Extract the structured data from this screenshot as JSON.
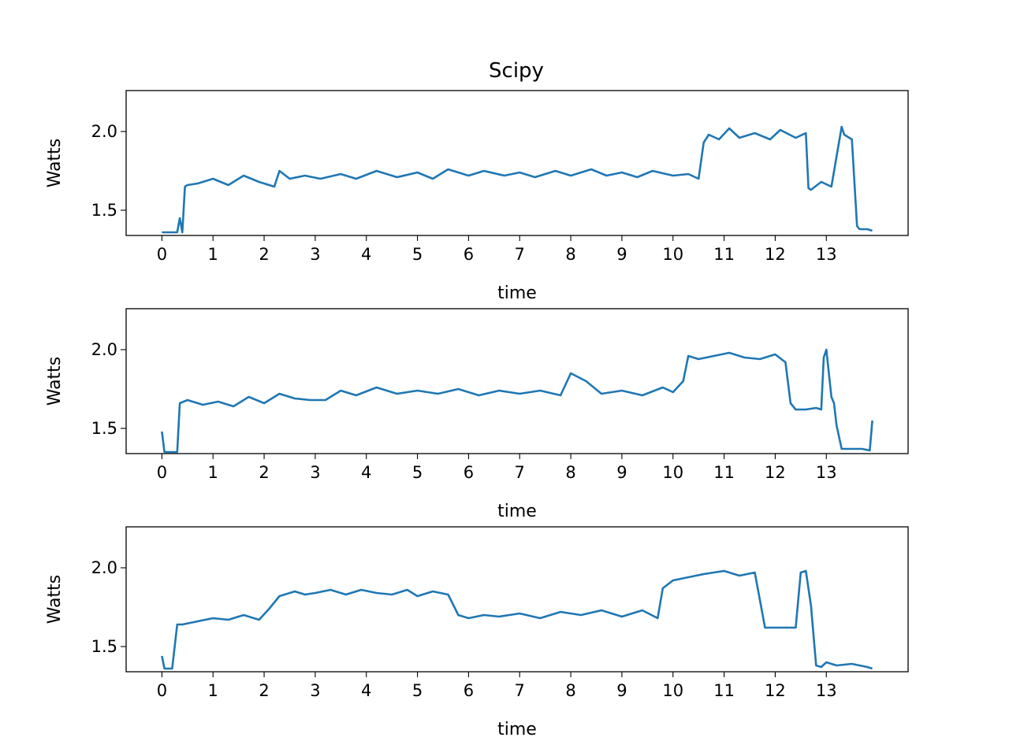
{
  "title": "Scipy",
  "colors": {
    "series": "#1f77b4"
  },
  "chart_data": [
    {
      "type": "line",
      "xlabel": "time",
      "ylabel": "Watts",
      "xlim": [
        -0.7,
        14.6
      ],
      "ylim": [
        1.34,
        2.26
      ],
      "xticks": [
        0,
        1,
        2,
        3,
        4,
        5,
        6,
        7,
        8,
        9,
        10,
        11,
        12,
        13
      ],
      "yticks": [
        1.5,
        2.0
      ],
      "ytick_labels": [
        "1.5",
        "2.0"
      ],
      "grid": false,
      "series": [
        {
          "x": [
            0,
            0.3,
            0.35,
            0.4,
            0.45,
            0.5,
            0.7,
            1.0,
            1.3,
            1.6,
            1.9,
            2.2,
            2.3,
            2.5,
            2.8,
            3.1,
            3.5,
            3.8,
            4.2,
            4.6,
            5.0,
            5.3,
            5.6,
            6.0,
            6.3,
            6.7,
            7.0,
            7.3,
            7.7,
            8.0,
            8.4,
            8.7,
            9.0,
            9.3,
            9.6,
            10.0,
            10.3,
            10.5,
            10.6,
            10.7,
            10.9,
            11.1,
            11.3,
            11.6,
            11.9,
            12.1,
            12.4,
            12.6,
            12.65,
            12.7,
            12.9,
            13.1,
            13.3,
            13.35,
            13.5,
            13.6,
            13.65,
            13.8,
            13.9
          ],
          "y": [
            1.36,
            1.36,
            1.45,
            1.36,
            1.65,
            1.66,
            1.67,
            1.7,
            1.66,
            1.72,
            1.68,
            1.65,
            1.75,
            1.7,
            1.72,
            1.7,
            1.73,
            1.7,
            1.75,
            1.71,
            1.74,
            1.7,
            1.76,
            1.72,
            1.75,
            1.72,
            1.74,
            1.71,
            1.75,
            1.72,
            1.76,
            1.72,
            1.74,
            1.71,
            1.75,
            1.72,
            1.73,
            1.7,
            1.93,
            1.98,
            1.95,
            2.02,
            1.96,
            1.99,
            1.95,
            2.01,
            1.96,
            1.99,
            1.64,
            1.63,
            1.68,
            1.65,
            2.03,
            1.98,
            1.95,
            1.4,
            1.38,
            1.38,
            1.37
          ]
        }
      ]
    },
    {
      "type": "line",
      "xlabel": "time",
      "ylabel": "Watts",
      "xlim": [
        -0.7,
        14.6
      ],
      "ylim": [
        1.34,
        2.26
      ],
      "xticks": [
        0,
        1,
        2,
        3,
        4,
        5,
        6,
        7,
        8,
        9,
        10,
        11,
        12,
        13
      ],
      "yticks": [
        1.5,
        2.0
      ],
      "ytick_labels": [
        "1.5",
        "2.0"
      ],
      "grid": false,
      "series": [
        {
          "x": [
            0,
            0.05,
            0.1,
            0.15,
            0.3,
            0.35,
            0.5,
            0.8,
            1.1,
            1.4,
            1.7,
            2.0,
            2.3,
            2.6,
            2.9,
            3.2,
            3.5,
            3.8,
            4.2,
            4.6,
            5.0,
            5.4,
            5.8,
            6.2,
            6.6,
            7.0,
            7.4,
            7.8,
            8.0,
            8.3,
            8.6,
            9.0,
            9.4,
            9.8,
            10.0,
            10.2,
            10.3,
            10.5,
            10.8,
            11.1,
            11.4,
            11.7,
            12.0,
            12.2,
            12.3,
            12.4,
            12.6,
            12.8,
            12.9,
            12.95,
            13.0,
            13.1,
            13.15,
            13.2,
            13.3,
            13.5,
            13.7,
            13.85,
            13.9
          ],
          "y": [
            1.48,
            1.35,
            1.35,
            1.35,
            1.35,
            1.66,
            1.68,
            1.65,
            1.67,
            1.64,
            1.7,
            1.66,
            1.72,
            1.69,
            1.68,
            1.68,
            1.74,
            1.71,
            1.76,
            1.72,
            1.74,
            1.72,
            1.75,
            1.71,
            1.74,
            1.72,
            1.74,
            1.71,
            1.85,
            1.8,
            1.72,
            1.74,
            1.71,
            1.76,
            1.73,
            1.8,
            1.96,
            1.94,
            1.96,
            1.98,
            1.95,
            1.94,
            1.97,
            1.92,
            1.66,
            1.62,
            1.62,
            1.63,
            1.62,
            1.95,
            2.0,
            1.7,
            1.66,
            1.52,
            1.37,
            1.37,
            1.37,
            1.36,
            1.55
          ]
        }
      ]
    },
    {
      "type": "line",
      "xlabel": "time",
      "ylabel": "Watts",
      "xlim": [
        -0.7,
        14.6
      ],
      "ylim": [
        1.34,
        2.26
      ],
      "xticks": [
        0,
        1,
        2,
        3,
        4,
        5,
        6,
        7,
        8,
        9,
        10,
        11,
        12,
        13
      ],
      "yticks": [
        1.5,
        2.0
      ],
      "ytick_labels": [
        "1.5",
        "2.0"
      ],
      "grid": false,
      "series": [
        {
          "x": [
            0,
            0.05,
            0.1,
            0.15,
            0.2,
            0.3,
            0.4,
            0.7,
            1.0,
            1.3,
            1.6,
            1.9,
            2.1,
            2.2,
            2.3,
            2.6,
            2.8,
            3.0,
            3.3,
            3.6,
            3.9,
            4.2,
            4.5,
            4.8,
            5.0,
            5.3,
            5.6,
            5.8,
            6.0,
            6.3,
            6.6,
            7.0,
            7.4,
            7.8,
            8.2,
            8.6,
            9.0,
            9.4,
            9.7,
            9.8,
            10.0,
            10.3,
            10.6,
            11.0,
            11.3,
            11.6,
            11.8,
            11.9,
            12.1,
            12.4,
            12.5,
            12.6,
            12.7,
            12.8,
            12.9,
            13.0,
            13.2,
            13.5,
            13.8,
            13.9
          ],
          "y": [
            1.44,
            1.36,
            1.36,
            1.36,
            1.36,
            1.64,
            1.64,
            1.66,
            1.68,
            1.67,
            1.7,
            1.67,
            1.74,
            1.78,
            1.82,
            1.85,
            1.83,
            1.84,
            1.86,
            1.83,
            1.86,
            1.84,
            1.83,
            1.86,
            1.82,
            1.85,
            1.83,
            1.7,
            1.68,
            1.7,
            1.69,
            1.71,
            1.68,
            1.72,
            1.7,
            1.73,
            1.69,
            1.73,
            1.68,
            1.87,
            1.92,
            1.94,
            1.96,
            1.98,
            1.95,
            1.97,
            1.62,
            1.62,
            1.62,
            1.62,
            1.97,
            1.98,
            1.76,
            1.38,
            1.37,
            1.4,
            1.38,
            1.39,
            1.37,
            1.36
          ]
        }
      ]
    }
  ]
}
